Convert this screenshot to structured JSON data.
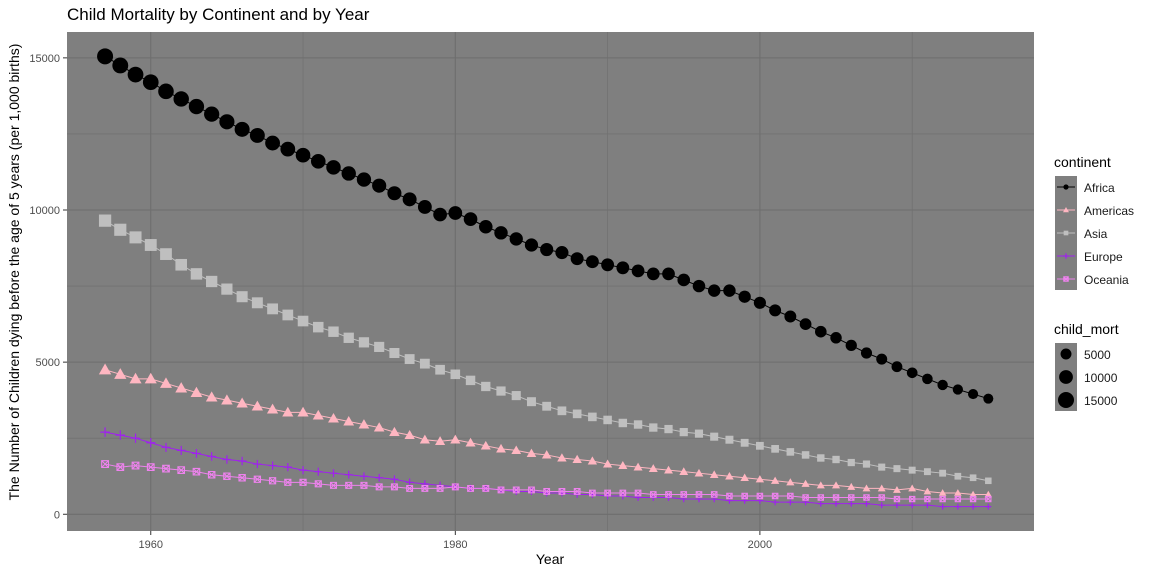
{
  "chart_data": {
    "type": "scatter",
    "title": "Child Mortality by Continent and by Year",
    "xlabel": "Year",
    "ylabel": "The Number of Children dying before the age of 5 years (per 1,000 births)",
    "xlim": [
      1954.5,
      2018
    ],
    "ylim": [
      -550,
      15850
    ],
    "xticks": [
      1960,
      1980,
      2000
    ],
    "yticks": [
      0,
      5000,
      10000,
      15000
    ],
    "x": [
      1957,
      1958,
      1959,
      1960,
      1961,
      1962,
      1963,
      1964,
      1965,
      1966,
      1967,
      1968,
      1969,
      1970,
      1971,
      1972,
      1973,
      1974,
      1975,
      1976,
      1977,
      1978,
      1979,
      1980,
      1981,
      1982,
      1983,
      1984,
      1985,
      1986,
      1987,
      1988,
      1989,
      1990,
      1991,
      1992,
      1993,
      1994,
      1995,
      1996,
      1997,
      1998,
      1999,
      2000,
      2001,
      2002,
      2003,
      2004,
      2005,
      2006,
      2007,
      2008,
      2009,
      2010,
      2011,
      2012,
      2013,
      2014,
      2015
    ],
    "series": [
      {
        "name": "Africa",
        "color": "#000000",
        "shape": "circle",
        "values": [
          15050,
          14750,
          14450,
          14200,
          13900,
          13650,
          13400,
          13150,
          12900,
          12650,
          12450,
          12200,
          12000,
          11800,
          11600,
          11400,
          11200,
          11000,
          10800,
          10550,
          10350,
          10100,
          9850,
          9900,
          9700,
          9450,
          9250,
          9050,
          8850,
          8700,
          8600,
          8400,
          8300,
          8200,
          8100,
          8000,
          7900,
          7900,
          7700,
          7500,
          7350,
          7350,
          7150,
          6950,
          6700,
          6500,
          6250,
          6000,
          5800,
          5550,
          5300,
          5100,
          4850,
          4650,
          4450,
          4250,
          4100,
          3950,
          3800
        ]
      },
      {
        "name": "Americas",
        "color": "#ffb6c1",
        "shape": "triangle",
        "values": [
          4750,
          4600,
          4450,
          4450,
          4300,
          4150,
          4000,
          3850,
          3750,
          3650,
          3550,
          3450,
          3350,
          3350,
          3250,
          3150,
          3050,
          2950,
          2850,
          2700,
          2600,
          2450,
          2400,
          2450,
          2350,
          2250,
          2150,
          2100,
          2000,
          1950,
          1850,
          1800,
          1750,
          1650,
          1600,
          1550,
          1500,
          1450,
          1400,
          1350,
          1300,
          1250,
          1200,
          1150,
          1100,
          1050,
          1000,
          950,
          950,
          900,
          850,
          850,
          800,
          850,
          750,
          700,
          700,
          650,
          650
        ]
      },
      {
        "name": "Asia",
        "color": "#bfbfbf",
        "shape": "square",
        "values": [
          9650,
          9350,
          9100,
          8850,
          8550,
          8200,
          7900,
          7650,
          7400,
          7150,
          6950,
          6750,
          6550,
          6350,
          6150,
          6000,
          5800,
          5650,
          5500,
          5300,
          5100,
          4950,
          4750,
          4600,
          4400,
          4200,
          4050,
          3900,
          3700,
          3550,
          3400,
          3300,
          3200,
          3100,
          3000,
          2950,
          2850,
          2800,
          2700,
          2650,
          2550,
          2450,
          2350,
          2250,
          2150,
          2050,
          1950,
          1850,
          1800,
          1700,
          1650,
          1550,
          1500,
          1450,
          1400,
          1350,
          1250,
          1200,
          1100
        ]
      },
      {
        "name": "Europe",
        "color": "#a020f0",
        "shape": "plus",
        "values": [
          2700,
          2600,
          2500,
          2350,
          2200,
          2100,
          2000,
          1900,
          1800,
          1750,
          1650,
          1600,
          1550,
          1450,
          1400,
          1350,
          1300,
          1250,
          1200,
          1150,
          1050,
          1000,
          950,
          900,
          850,
          850,
          800,
          750,
          750,
          700,
          700,
          650,
          650,
          600,
          600,
          550,
          550,
          550,
          500,
          500,
          500,
          450,
          450,
          450,
          400,
          400,
          400,
          350,
          350,
          350,
          350,
          300,
          300,
          300,
          300,
          250,
          250,
          250,
          250
        ]
      },
      {
        "name": "Oceania",
        "color": "#ee82ee",
        "shape": "square-x",
        "values": [
          1650,
          1550,
          1600,
          1550,
          1500,
          1450,
          1400,
          1300,
          1250,
          1200,
          1150,
          1100,
          1050,
          1050,
          1000,
          950,
          950,
          950,
          900,
          900,
          850,
          850,
          850,
          900,
          850,
          850,
          800,
          800,
          800,
          750,
          750,
          750,
          700,
          700,
          700,
          700,
          650,
          650,
          650,
          650,
          650,
          600,
          600,
          600,
          600,
          600,
          550,
          550,
          550,
          550,
          550,
          550,
          500,
          500,
          500,
          500,
          500,
          500,
          500
        ]
      }
    ],
    "legends": {
      "continent": {
        "title": "continent",
        "entries": [
          "Africa",
          "Americas",
          "Asia",
          "Europe",
          "Oceania"
        ]
      },
      "size": {
        "title": "child_mort",
        "entries": [
          "5000",
          "10000",
          "15000"
        ]
      }
    },
    "grid": true,
    "legend_position": "right"
  }
}
